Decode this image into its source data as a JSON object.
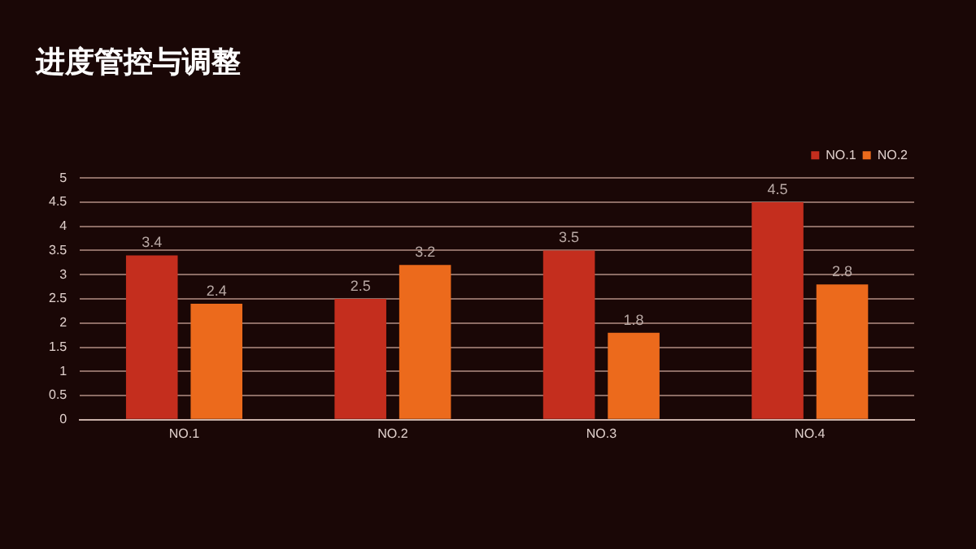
{
  "chart_data": {
    "type": "bar",
    "title": "进度管控与调整",
    "categories": [
      "NO.1",
      "NO.2",
      "NO.3",
      "NO.4"
    ],
    "series": [
      {
        "name": "NO.1",
        "color": "#c42e1e",
        "values": [
          3.4,
          2.5,
          3.5,
          4.5
        ]
      },
      {
        "name": "NO.2",
        "color": "#ec6a1c",
        "values": [
          2.4,
          3.2,
          1.8,
          2.8
        ]
      }
    ],
    "ylim": [
      0,
      5
    ],
    "yticks": [
      0,
      0.5,
      1,
      1.5,
      2,
      2.5,
      3,
      3.5,
      4,
      4.5,
      5
    ],
    "grid": "y",
    "legend": "top right",
    "data_labels": true
  }
}
